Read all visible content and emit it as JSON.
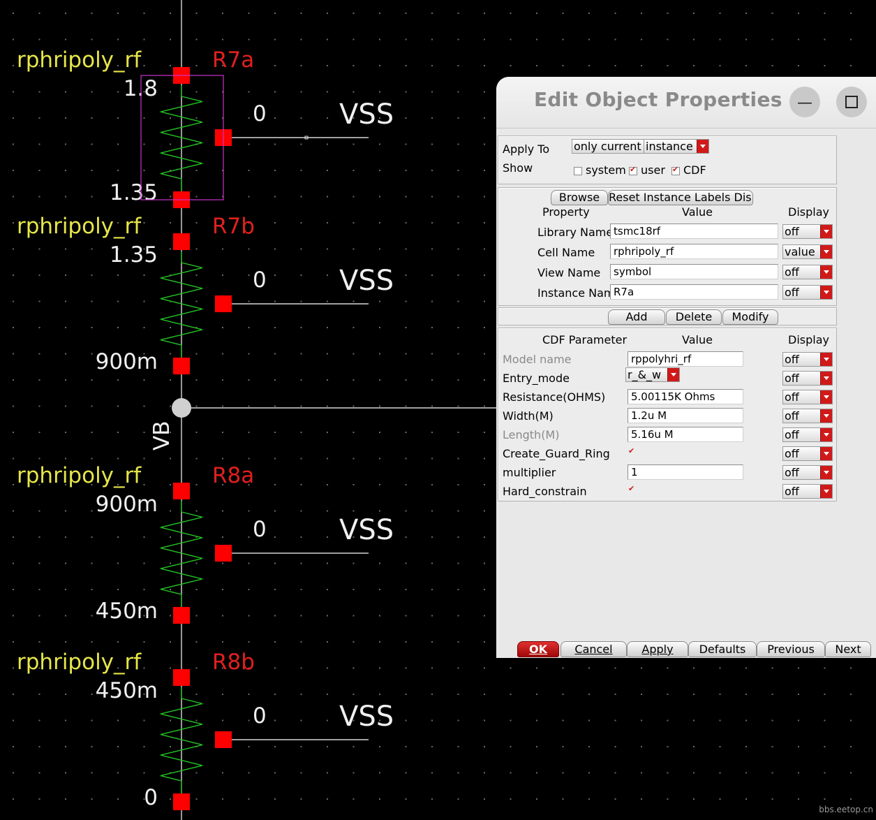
{
  "schematic": {
    "resistors": [
      {
        "cell": "rphripoly_rf",
        "instance": "R7a",
        "v_top": "1.8",
        "v_mid": "0",
        "net": "VSS",
        "v_bottom": "1.35",
        "selected": true
      },
      {
        "cell": "rphripoly_rf",
        "instance": "R7b",
        "v_top": "1.35",
        "v_mid": "0",
        "net": "VSS",
        "v_bottom": "900m",
        "selected": false
      },
      {
        "cell": "rphripoly_rf",
        "instance": "R8a",
        "v_top": "900m",
        "v_mid": "0",
        "net": "VSS",
        "v_bottom": "450m",
        "selected": false
      },
      {
        "cell": "rphripoly_rf",
        "instance": "R8b",
        "v_top": "450m",
        "v_mid": "0",
        "net": "VSS",
        "v_bottom": "0",
        "selected": false
      }
    ],
    "node_label": "VB",
    "colors": {
      "wire": "#ffffff",
      "resistor": "#22c022",
      "pin": "#ff0000",
      "cell_label": "#e6e64a",
      "inst_label": "#e0201e",
      "selection": "#cc33cc"
    }
  },
  "dialog": {
    "title": "Edit Object Properties",
    "minimize_icon": "minimize-icon",
    "maximize_icon": "maximize-icon",
    "apply_to_label": "Apply To",
    "apply_to_scope": "only current",
    "apply_to_type": "instance",
    "show_label": "Show",
    "show_system": "system",
    "show_user": "user",
    "show_cdf": "CDF",
    "browse": "Browse",
    "reset_labels": "Reset Instance Labels Display",
    "props_header": {
      "property": "Property",
      "value": "Value",
      "display": "Display"
    },
    "props": [
      {
        "label": "Library Name",
        "value": "tsmc18rf",
        "display": "off"
      },
      {
        "label": "Cell Name",
        "value": "rphripoly_rf",
        "display": "value"
      },
      {
        "label": "View Name",
        "value": "symbol",
        "display": "off"
      },
      {
        "label": "Instance Nam",
        "value": "R7a",
        "display": "off"
      }
    ],
    "add": "Add",
    "delete": "Delete",
    "modify": "Modify",
    "cdf_header": {
      "param": "CDF Parameter",
      "value": "Value",
      "display": "Display"
    },
    "cdf": [
      {
        "label": "Model name",
        "value": "rppolyhri_rf",
        "display": "off",
        "muted": true,
        "kind": "field"
      },
      {
        "label": "Entry_mode",
        "value": "r_&_w",
        "display": "off",
        "muted": false,
        "kind": "dropdown"
      },
      {
        "label": "Resistance(OHMS)",
        "value": "5.00115K Ohms",
        "display": "off",
        "muted": false,
        "kind": "field"
      },
      {
        "label": "Width(M)",
        "value": "1.2u M",
        "display": "off",
        "muted": false,
        "kind": "field"
      },
      {
        "label": "Length(M)",
        "value": "5.16u M",
        "display": "off",
        "muted": true,
        "kind": "field"
      },
      {
        "label": "Create_Guard_Ring",
        "value": "",
        "display": "off",
        "muted": false,
        "kind": "check"
      },
      {
        "label": "multiplier",
        "value": "1",
        "display": "off",
        "muted": false,
        "kind": "field"
      },
      {
        "label": "Hard_constrain",
        "value": "",
        "display": "off",
        "muted": false,
        "kind": "check"
      }
    ],
    "buttons": {
      "ok": "OK",
      "cancel": "Cancel",
      "apply": "Apply",
      "defaults": "Defaults",
      "previous": "Previous",
      "next": "Next"
    }
  },
  "watermark": "bbs.eetop.cn"
}
